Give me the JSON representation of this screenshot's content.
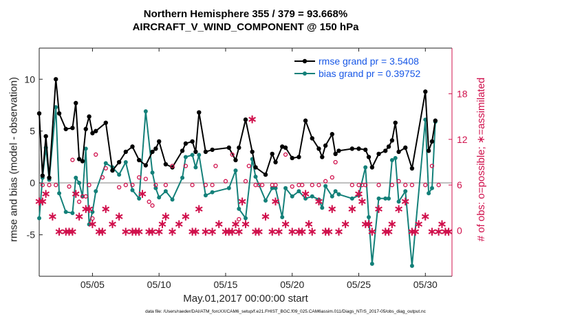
{
  "chart_data": {
    "type": "line",
    "title": "Northern Hemisphere 355 / 379 = 93.668%",
    "subtitle": "AIRCRAFT_V_WIND_COMPONENT @ 150 hPa",
    "xlabel": "May.01,2017 00:00:00 start",
    "ylabel": "rmse and bias (model - observation)",
    "ylabel_right": "# of obs: o=possible; ∗=assimilated",
    "footnote": "data file: /Users/raeder/DAI/ATM_forcXX/CAM6_setup/f.e21.FHIST_BGC.f09_025.CAM6assim.011/Diags_NTrS_2017-05/obs_diag_output.nc",
    "xlim": [
      1.0,
      32.0
    ],
    "ylim": [
      -9,
      13
    ],
    "ylim_right": [
      -6,
      24
    ],
    "x_ticks": [
      5,
      10,
      15,
      20,
      25,
      30
    ],
    "x_tick_labels": [
      "05/05",
      "05/10",
      "05/15",
      "05/20",
      "05/25",
      "05/30"
    ],
    "y_ticks": [
      -5,
      0,
      5,
      10
    ],
    "y_tick_labels": [
      "-5",
      "0",
      "5",
      "10"
    ],
    "y_right_ticks": [
      0,
      6,
      12,
      18
    ],
    "y_right_tick_labels": [
      "0",
      "6",
      "12",
      "18"
    ],
    "zero_line": 0,
    "grid": false,
    "legend_position": "top-right",
    "colors": {
      "rmse": "#000000",
      "bias": "#138079",
      "obs": "#d0104c",
      "zero_line": "#aaaaaa",
      "legend_text": "#1656e6"
    },
    "series": [
      {
        "name": "rmse grand pr = 3.5408",
        "role": "rmse",
        "points": [
          [
            1.0,
            6.7
          ],
          [
            1.25,
            0.7
          ],
          [
            1.5,
            4.5
          ],
          [
            1.75,
            0.5
          ],
          [
            2.25,
            10.0
          ],
          [
            2.5,
            6.7
          ],
          [
            3.0,
            5.2
          ],
          [
            3.5,
            5.3
          ],
          [
            3.75,
            7.7
          ],
          [
            4.0,
            2.3
          ],
          [
            4.25,
            2.1
          ],
          [
            4.5,
            5.2
          ],
          [
            4.75,
            6.4
          ],
          [
            5.0,
            4.8
          ],
          [
            5.25,
            5.0
          ],
          [
            6.0,
            5.8
          ],
          [
            6.5,
            1.2
          ],
          [
            7.0,
            2.0
          ],
          [
            7.5,
            3.0
          ],
          [
            8.0,
            3.5
          ],
          [
            8.5,
            2.2
          ],
          [
            9.0,
            1.7
          ],
          [
            9.5,
            3.0
          ],
          [
            9.75,
            3.3
          ],
          [
            10.0,
            4.0
          ],
          [
            10.5,
            1.8
          ],
          [
            11.0,
            1.5
          ],
          [
            11.75,
            3.1
          ],
          [
            12.0,
            3.8
          ],
          [
            12.5,
            4.0
          ],
          [
            12.75,
            3.0
          ],
          [
            13.0,
            6.8
          ],
          [
            13.5,
            3.0
          ],
          [
            14.0,
            3.2
          ],
          [
            15.25,
            3.4
          ],
          [
            15.75,
            2.2
          ],
          [
            16.0,
            3.4
          ],
          [
            16.5,
            6.1
          ],
          [
            17.0,
            3.0
          ],
          [
            17.25,
            1.5
          ],
          [
            18.0,
            0.8
          ],
          [
            18.5,
            2.8
          ],
          [
            18.75,
            2.0
          ],
          [
            19.25,
            3.5
          ],
          [
            19.5,
            3.4
          ],
          [
            20.0,
            2.4
          ],
          [
            20.5,
            2.5
          ],
          [
            21.0,
            6.0
          ],
          [
            21.5,
            4.3
          ],
          [
            22.0,
            3.3
          ],
          [
            22.25,
            2.5
          ],
          [
            22.5,
            3.6
          ],
          [
            23.0,
            4.7
          ],
          [
            23.25,
            2.8
          ],
          [
            23.5,
            3.1
          ],
          [
            24.5,
            3.3
          ],
          [
            25.0,
            3.3
          ],
          [
            25.5,
            3.2
          ],
          [
            25.75,
            2.5
          ],
          [
            26.0,
            1.5
          ],
          [
            26.5,
            2.8
          ],
          [
            27.0,
            3.1
          ],
          [
            27.25,
            3.5
          ],
          [
            27.5,
            4.1
          ],
          [
            27.75,
            5.8
          ],
          [
            28.0,
            3.0
          ],
          [
            28.5,
            3.4
          ],
          [
            29.0,
            1.4
          ],
          [
            30.0,
            8.8
          ],
          [
            30.25,
            3.1
          ],
          [
            30.5,
            4.0
          ],
          [
            30.75,
            6.0
          ]
        ]
      },
      {
        "name": "bias grand pr = 0.39752",
        "role": "bias",
        "points": [
          [
            1.0,
            -3.4
          ],
          [
            1.25,
            0.5
          ],
          [
            1.5,
            3.4
          ],
          [
            1.75,
            0.3
          ],
          [
            2.25,
            7.3
          ],
          [
            2.5,
            -1.0
          ],
          [
            3.0,
            -2.8
          ],
          [
            3.5,
            -2.9
          ],
          [
            3.75,
            0.5
          ],
          [
            4.0,
            0.0
          ],
          [
            4.25,
            -1.3
          ],
          [
            4.5,
            3.3
          ],
          [
            4.75,
            -4.0
          ],
          [
            5.0,
            -2.8
          ],
          [
            5.25,
            -0.8
          ],
          [
            6.0,
            1.9
          ],
          [
            6.5,
            1.5
          ],
          [
            7.0,
            0.8
          ],
          [
            7.5,
            2.0
          ],
          [
            8.0,
            -0.7
          ],
          [
            8.5,
            -1.5
          ],
          [
            9.0,
            6.9
          ],
          [
            9.5,
            1.0
          ],
          [
            9.75,
            -0.5
          ],
          [
            10.0,
            -1.4
          ],
          [
            10.5,
            -0.8
          ],
          [
            11.0,
            -1.6
          ],
          [
            11.75,
            0.5
          ],
          [
            12.0,
            2.5
          ],
          [
            12.5,
            2.7
          ],
          [
            12.75,
            1.5
          ],
          [
            13.0,
            2.7
          ],
          [
            13.5,
            -1.2
          ],
          [
            14.0,
            -0.9
          ],
          [
            15.25,
            -0.5
          ],
          [
            15.75,
            1.2
          ],
          [
            16.0,
            -2.5
          ],
          [
            16.5,
            -3.4
          ],
          [
            17.0,
            2.3
          ],
          [
            17.25,
            0.6
          ],
          [
            18.0,
            -1.7
          ],
          [
            18.5,
            -0.5
          ],
          [
            18.75,
            -0.5
          ],
          [
            19.25,
            -3.3
          ],
          [
            19.5,
            -0.5
          ],
          [
            20.0,
            -1.3
          ],
          [
            20.5,
            -0.8
          ],
          [
            21.0,
            -1.5
          ],
          [
            21.5,
            -1.3
          ],
          [
            22.0,
            -1.6
          ],
          [
            22.25,
            -2.4
          ],
          [
            22.5,
            -0.3
          ],
          [
            23.0,
            -1.3
          ],
          [
            23.25,
            -0.8
          ],
          [
            23.5,
            -1.1
          ],
          [
            24.5,
            -1.5
          ],
          [
            25.0,
            -1.2
          ],
          [
            25.5,
            1.5
          ],
          [
            25.75,
            -3.3
          ],
          [
            26.0,
            -7.8
          ],
          [
            26.5,
            -1.5
          ],
          [
            27.0,
            -1.5
          ],
          [
            27.25,
            -1.5
          ],
          [
            27.5,
            2.2
          ],
          [
            27.75,
            2.4
          ],
          [
            28.0,
            -1.8
          ],
          [
            28.5,
            -0.8
          ],
          [
            29.0,
            -8.0
          ],
          [
            30.0,
            6.1
          ],
          [
            30.25,
            -1.0
          ],
          [
            30.5,
            -0.5
          ],
          [
            30.75,
            5.9
          ]
        ]
      }
    ],
    "obs_assimilated": {
      "name": "# of obs assimilated (∗)",
      "axis": "right",
      "points": [
        [
          1.0,
          4
        ],
        [
          1.25,
          4
        ],
        [
          1.5,
          5
        ],
        [
          2.0,
          2
        ],
        [
          2.5,
          0
        ],
        [
          3.0,
          0
        ],
        [
          3.25,
          0
        ],
        [
          3.5,
          0
        ],
        [
          3.75,
          5
        ],
        [
          4.0,
          2
        ],
        [
          4.5,
          3
        ],
        [
          4.75,
          3
        ],
        [
          5.0,
          1
        ],
        [
          5.5,
          0
        ],
        [
          5.75,
          0
        ],
        [
          6.0,
          3
        ],
        [
          6.5,
          1
        ],
        [
          7.0,
          2
        ],
        [
          7.5,
          0
        ],
        [
          8.0,
          0
        ],
        [
          8.25,
          0
        ],
        [
          8.5,
          0
        ],
        [
          8.75,
          5
        ],
        [
          9.25,
          0
        ],
        [
          9.5,
          0
        ],
        [
          10.0,
          0
        ],
        [
          10.25,
          1
        ],
        [
          10.5,
          2
        ],
        [
          11.0,
          0
        ],
        [
          11.5,
          1
        ],
        [
          12.0,
          2
        ],
        [
          12.5,
          0
        ],
        [
          12.75,
          0
        ],
        [
          13.0,
          3
        ],
        [
          13.5,
          0
        ],
        [
          14.0,
          0
        ],
        [
          14.5,
          1
        ],
        [
          15.0,
          0
        ],
        [
          15.25,
          0
        ],
        [
          15.5,
          0
        ],
        [
          15.75,
          1
        ],
        [
          16.0,
          0
        ],
        [
          16.25,
          4
        ],
        [
          16.5,
          1
        ],
        [
          17.0,
          14.8
        ],
        [
          17.25,
          0
        ],
        [
          17.5,
          0
        ],
        [
          18.0,
          2
        ],
        [
          18.5,
          0
        ],
        [
          18.75,
          4
        ],
        [
          19.0,
          0
        ],
        [
          19.5,
          1
        ],
        [
          20.0,
          0
        ],
        [
          20.5,
          0
        ],
        [
          20.75,
          0
        ],
        [
          21.0,
          5
        ],
        [
          21.25,
          1
        ],
        [
          21.5,
          0
        ],
        [
          22.0,
          4
        ],
        [
          22.5,
          0
        ],
        [
          22.75,
          0
        ],
        [
          23.0,
          3
        ],
        [
          23.5,
          0
        ],
        [
          24.0,
          1
        ],
        [
          24.5,
          3
        ],
        [
          25.0,
          5
        ],
        [
          25.25,
          4
        ],
        [
          25.5,
          1
        ],
        [
          25.75,
          1
        ],
        [
          26.0,
          0
        ],
        [
          26.5,
          3
        ],
        [
          27.0,
          0
        ],
        [
          27.25,
          0
        ],
        [
          27.5,
          1
        ],
        [
          28.0,
          3
        ],
        [
          28.5,
          4
        ],
        [
          29.0,
          0
        ],
        [
          29.25,
          0
        ],
        [
          29.5,
          1
        ],
        [
          30.0,
          2
        ],
        [
          30.5,
          0
        ],
        [
          31.0,
          0
        ],
        [
          31.25,
          1
        ],
        [
          31.5,
          0
        ],
        [
          31.75,
          0
        ]
      ]
    },
    "obs_possible": {
      "name": "# of obs possible (o)",
      "axis": "right",
      "points": [
        [
          1.25,
          6
        ],
        [
          1.75,
          6
        ],
        [
          2.25,
          6
        ],
        [
          3.25,
          5.8
        ],
        [
          3.5,
          9.3
        ],
        [
          4.0,
          3.8
        ],
        [
          4.25,
          4.5
        ],
        [
          4.5,
          4.5
        ],
        [
          4.75,
          6
        ],
        [
          5.0,
          1.6
        ],
        [
          5.25,
          10
        ],
        [
          5.75,
          7
        ],
        [
          6.0,
          8.2
        ],
        [
          7.0,
          5.7
        ],
        [
          7.5,
          6
        ],
        [
          8.0,
          6
        ],
        [
          8.5,
          7
        ],
        [
          9.0,
          6.8
        ],
        [
          9.25,
          3.8
        ],
        [
          9.5,
          3.3
        ],
        [
          9.75,
          6
        ],
        [
          10.5,
          6
        ],
        [
          11.0,
          8.5
        ],
        [
          12.0,
          8.5
        ],
        [
          12.5,
          6
        ],
        [
          13.5,
          6
        ],
        [
          14.0,
          6
        ],
        [
          14.25,
          8.5
        ],
        [
          15.0,
          6.5
        ],
        [
          15.5,
          10
        ],
        [
          16.0,
          1.5
        ],
        [
          16.5,
          6.5
        ],
        [
          16.75,
          8.5
        ],
        [
          17.25,
          6
        ],
        [
          17.5,
          6
        ],
        [
          17.75,
          6
        ],
        [
          18.5,
          6
        ],
        [
          18.75,
          6
        ],
        [
          19.5,
          10
        ],
        [
          20.0,
          5.8
        ],
        [
          20.5,
          6
        ],
        [
          20.75,
          6
        ],
        [
          21.5,
          6
        ],
        [
          22.0,
          6
        ],
        [
          22.5,
          6.5
        ],
        [
          23.0,
          7
        ],
        [
          23.25,
          9
        ],
        [
          24.5,
          6
        ],
        [
          25.0,
          6
        ],
        [
          25.25,
          6
        ],
        [
          25.5,
          6
        ],
        [
          26.5,
          6
        ],
        [
          27.5,
          6
        ],
        [
          28.0,
          6.5
        ],
        [
          28.5,
          6
        ],
        [
          29.0,
          6
        ],
        [
          30.0,
          6
        ],
        [
          30.5,
          8.5
        ],
        [
          31.0,
          6
        ]
      ]
    }
  }
}
